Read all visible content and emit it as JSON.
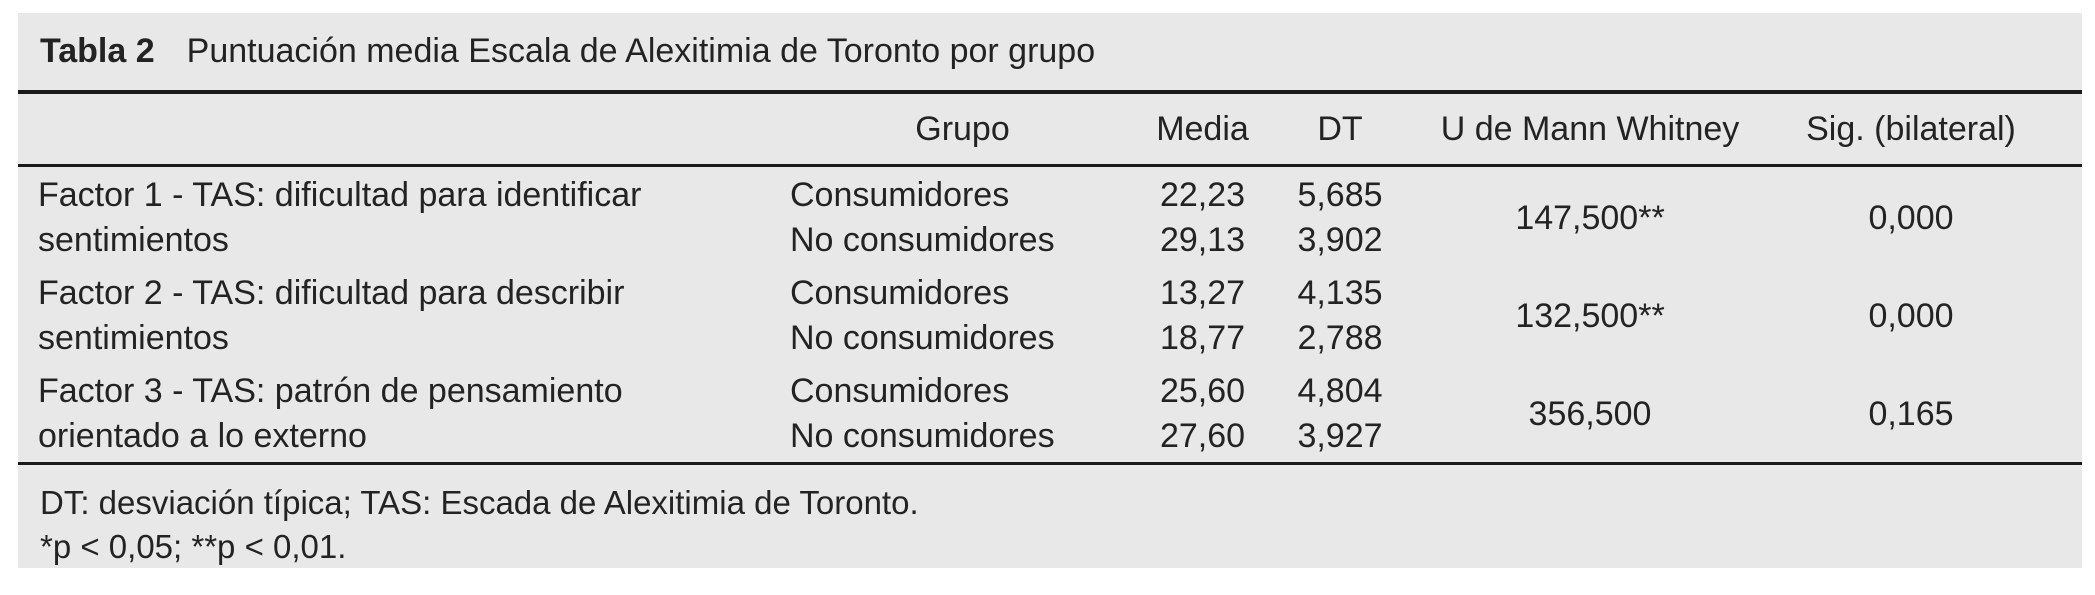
{
  "colors": {
    "panel_background": "#e8e8e9",
    "rule": "#1a1a1a",
    "text": "#232323"
  },
  "title": {
    "label": "Tabla 2",
    "text": "Puntuación media Escala de Alexitimia de Toronto por grupo"
  },
  "header": {
    "grupo": "Grupo",
    "media": "Media",
    "dt": "DT",
    "u": "U de Mann Whitney",
    "sig": "Sig. (bilateral)"
  },
  "rows": [
    {
      "factor": "Factor 1 - TAS: dificultad para identificar sentimientos",
      "factor_lines": [
        "Factor 1 - TAS: dificultad para identificar",
        "sentimientos"
      ],
      "groups": [
        "Consumidores",
        "No consumidores"
      ],
      "media": [
        "22,23",
        "29,13"
      ],
      "dt": [
        "5,685",
        "3,902"
      ],
      "u": "147,500**",
      "sig": "0,000"
    },
    {
      "factor": "Factor 2 - TAS: dificultad para describir sentimientos",
      "factor_lines": [
        "Factor 2 - TAS: dificultad para describir",
        "sentimientos"
      ],
      "groups": [
        "Consumidores",
        "No consumidores"
      ],
      "media": [
        "13,27",
        "18,77"
      ],
      "dt": [
        "4,135",
        "2,788"
      ],
      "u": "132,500**",
      "sig": "0,000"
    },
    {
      "factor": "Factor 3 - TAS: patrón de pensamiento orientado a lo externo",
      "factor_lines": [
        "Factor 3 - TAS: patrón de pensamiento",
        "orientado a lo externo"
      ],
      "groups": [
        "Consumidores",
        "No consumidores"
      ],
      "media": [
        "25,60",
        "27,60"
      ],
      "dt": [
        "4,804",
        "3,927"
      ],
      "u": "356,500",
      "sig": "0,165"
    }
  ],
  "footnotes": [
    "DT: desviación típica; TAS: Escada de Alexitimia de Toronto.",
    "*p < 0,05; **p < 0,01."
  ]
}
